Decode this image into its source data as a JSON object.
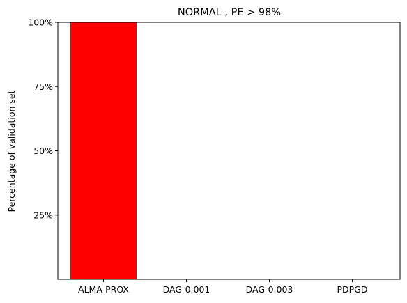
{
  "chart_data": {
    "type": "bar",
    "title": "NORMAL , PE > 98%",
    "xlabel": "",
    "ylabel": "Percentage of validation set",
    "categories": [
      "ALMA-PROX",
      "DAG-0.001",
      "DAG-0.003",
      "PDPGD"
    ],
    "values": [
      100,
      0,
      0,
      0
    ],
    "ylim": [
      0,
      100
    ],
    "yticks": [
      25,
      50,
      75,
      100
    ],
    "ytick_labels": [
      "25%",
      "50%",
      "75%",
      "100%"
    ],
    "grid": false,
    "legend": "none",
    "bar_color": "#ff0000"
  }
}
